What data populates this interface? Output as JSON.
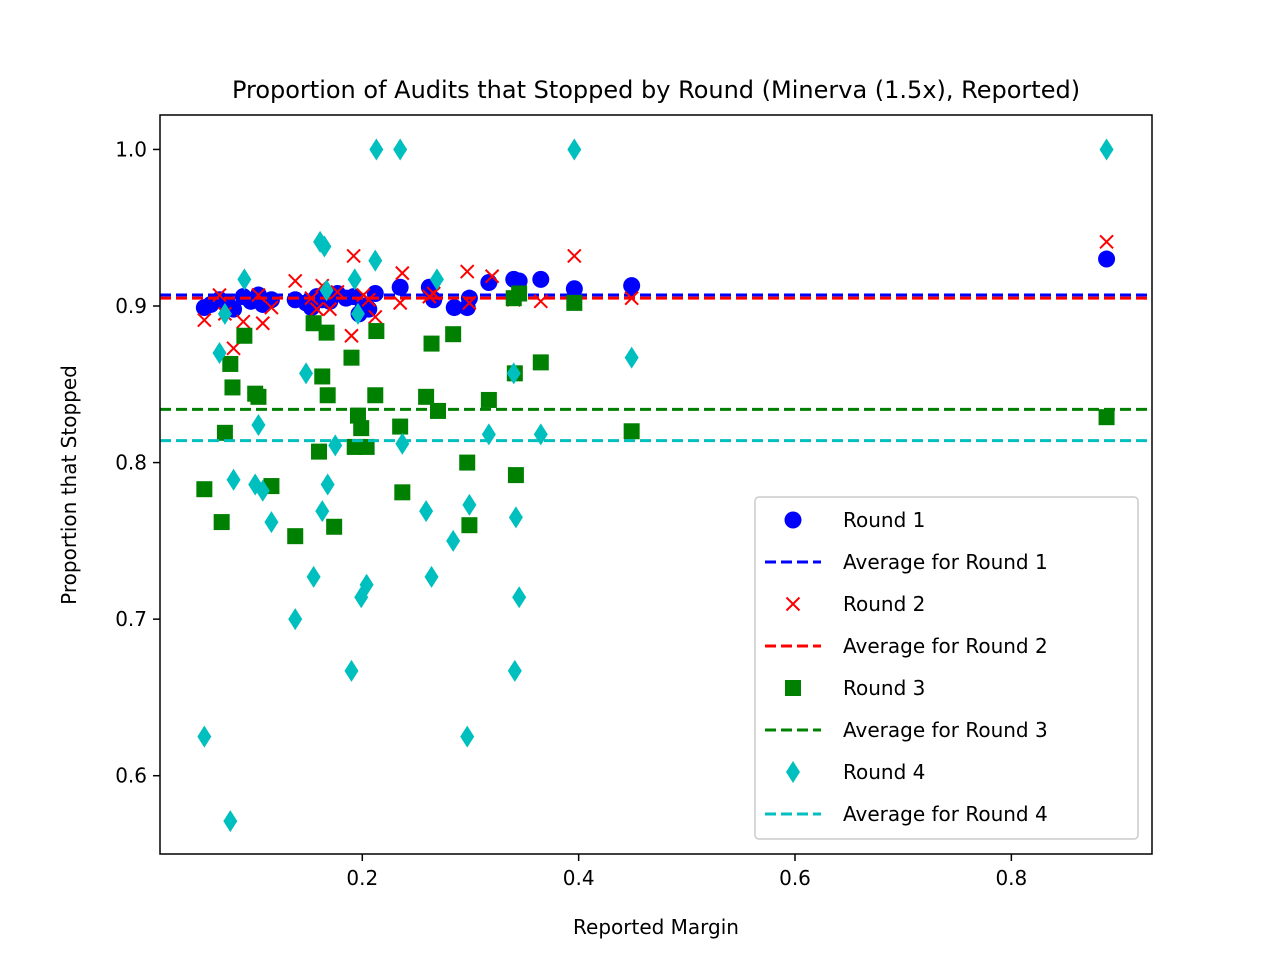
{
  "chart_data": {
    "type": "scatter",
    "title": "Proportion of Audits that Stopped by Round (Minerva (1.5x), Reported)",
    "xlabel": "Reported Margin",
    "ylabel": "Proportion that Stopped",
    "xlim": [
      0.013,
      0.93
    ],
    "ylim": [
      0.55,
      1.022
    ],
    "xticks": [
      0.2,
      0.4,
      0.6,
      0.8
    ],
    "xtick_labels": [
      "0.2",
      "0.4",
      "0.6",
      "0.8"
    ],
    "yticks": [
      0.6,
      0.7,
      0.8,
      0.9,
      1.0
    ],
    "ytick_labels": [
      "0.6",
      "0.7",
      "0.8",
      "0.9",
      "1.0"
    ],
    "grid": false,
    "legend_position": "lower-right",
    "series": [
      {
        "name": "Round 1",
        "marker": "circle",
        "color": "#0000ff",
        "points": [
          [
            0.054,
            0.899
          ],
          [
            0.06,
            0.901
          ],
          [
            0.068,
            0.904
          ],
          [
            0.075,
            0.902
          ],
          [
            0.081,
            0.898
          ],
          [
            0.09,
            0.906
          ],
          [
            0.097,
            0.903
          ],
          [
            0.104,
            0.907
          ],
          [
            0.108,
            0.901
          ],
          [
            0.116,
            0.904
          ],
          [
            0.138,
            0.904
          ],
          [
            0.148,
            0.902
          ],
          [
            0.153,
            0.899
          ],
          [
            0.158,
            0.906
          ],
          [
            0.163,
            0.904
          ],
          [
            0.17,
            0.903
          ],
          [
            0.177,
            0.908
          ],
          [
            0.185,
            0.905
          ],
          [
            0.192,
            0.906
          ],
          [
            0.197,
            0.895
          ],
          [
            0.201,
            0.9
          ],
          [
            0.206,
            0.898
          ],
          [
            0.212,
            0.908
          ],
          [
            0.235,
            0.912
          ],
          [
            0.262,
            0.912
          ],
          [
            0.266,
            0.904
          ],
          [
            0.285,
            0.899
          ],
          [
            0.297,
            0.899
          ],
          [
            0.299,
            0.905
          ],
          [
            0.317,
            0.915
          ],
          [
            0.34,
            0.917
          ],
          [
            0.345,
            0.916
          ],
          [
            0.365,
            0.917
          ],
          [
            0.396,
            0.911
          ],
          [
            0.449,
            0.913
          ],
          [
            0.888,
            0.93
          ]
        ]
      },
      {
        "name": "Average for Round 1",
        "line": "dashed",
        "color": "#0000ff",
        "y": 0.907
      },
      {
        "name": "Round 2",
        "marker": "x",
        "color": "#ff0000",
        "points": [
          [
            0.054,
            0.891
          ],
          [
            0.068,
            0.907
          ],
          [
            0.073,
            0.895
          ],
          [
            0.081,
            0.873
          ],
          [
            0.09,
            0.89
          ],
          [
            0.104,
            0.907
          ],
          [
            0.108,
            0.889
          ],
          [
            0.116,
            0.899
          ],
          [
            0.138,
            0.916
          ],
          [
            0.153,
            0.905
          ],
          [
            0.158,
            0.898
          ],
          [
            0.163,
            0.913
          ],
          [
            0.17,
            0.898
          ],
          [
            0.177,
            0.909
          ],
          [
            0.19,
            0.881
          ],
          [
            0.192,
            0.932
          ],
          [
            0.201,
            0.907
          ],
          [
            0.206,
            0.904
          ],
          [
            0.212,
            0.893
          ],
          [
            0.235,
            0.902
          ],
          [
            0.237,
            0.921
          ],
          [
            0.262,
            0.906
          ],
          [
            0.266,
            0.908
          ],
          [
            0.297,
            0.922
          ],
          [
            0.299,
            0.902
          ],
          [
            0.32,
            0.919
          ],
          [
            0.34,
            0.904
          ],
          [
            0.365,
            0.903
          ],
          [
            0.396,
            0.932
          ],
          [
            0.449,
            0.905
          ],
          [
            0.888,
            0.941
          ]
        ]
      },
      {
        "name": "Average for Round 2",
        "line": "dashed",
        "color": "#ff0000",
        "y": 0.905
      },
      {
        "name": "Round 3",
        "marker": "square",
        "color": "#008000",
        "points": [
          [
            0.054,
            0.783
          ],
          [
            0.07,
            0.762
          ],
          [
            0.073,
            0.819
          ],
          [
            0.078,
            0.863
          ],
          [
            0.08,
            0.848
          ],
          [
            0.091,
            0.881
          ],
          [
            0.101,
            0.844
          ],
          [
            0.104,
            0.842
          ],
          [
            0.116,
            0.785
          ],
          [
            0.138,
            0.753
          ],
          [
            0.155,
            0.889
          ],
          [
            0.16,
            0.807
          ],
          [
            0.163,
            0.855
          ],
          [
            0.167,
            0.883
          ],
          [
            0.168,
            0.843
          ],
          [
            0.174,
            0.759
          ],
          [
            0.19,
            0.867
          ],
          [
            0.193,
            0.81
          ],
          [
            0.196,
            0.83
          ],
          [
            0.199,
            0.822
          ],
          [
            0.204,
            0.81
          ],
          [
            0.212,
            0.843
          ],
          [
            0.213,
            0.884
          ],
          [
            0.235,
            0.823
          ],
          [
            0.237,
            0.781
          ],
          [
            0.259,
            0.842
          ],
          [
            0.264,
            0.876
          ],
          [
            0.27,
            0.833
          ],
          [
            0.284,
            0.882
          ],
          [
            0.297,
            0.8
          ],
          [
            0.299,
            0.76
          ],
          [
            0.317,
            0.84
          ],
          [
            0.34,
            0.905
          ],
          [
            0.341,
            0.857
          ],
          [
            0.342,
            0.792
          ],
          [
            0.345,
            0.908
          ],
          [
            0.365,
            0.864
          ],
          [
            0.396,
            0.902
          ],
          [
            0.449,
            0.82
          ],
          [
            0.888,
            0.829
          ]
        ]
      },
      {
        "name": "Average for Round 3",
        "line": "dashed",
        "color": "#008000",
        "y": 0.834
      },
      {
        "name": "Round 4",
        "marker": "thin-diamond",
        "color": "#00bfbf",
        "points": [
          [
            0.054,
            0.625
          ],
          [
            0.068,
            0.87
          ],
          [
            0.073,
            0.895
          ],
          [
            0.078,
            0.571
          ],
          [
            0.081,
            0.789
          ],
          [
            0.091,
            0.917
          ],
          [
            0.101,
            0.786
          ],
          [
            0.104,
            0.824
          ],
          [
            0.108,
            0.782
          ],
          [
            0.116,
            0.762
          ],
          [
            0.138,
            0.7
          ],
          [
            0.148,
            0.857
          ],
          [
            0.155,
            0.727
          ],
          [
            0.161,
            0.941
          ],
          [
            0.163,
            0.769
          ],
          [
            0.165,
            0.938
          ],
          [
            0.167,
            0.91
          ],
          [
            0.168,
            0.786
          ],
          [
            0.175,
            0.811
          ],
          [
            0.19,
            0.667
          ],
          [
            0.193,
            0.917
          ],
          [
            0.196,
            0.895
          ],
          [
            0.199,
            0.714
          ],
          [
            0.204,
            0.722
          ],
          [
            0.212,
            0.929
          ],
          [
            0.213,
            1.0
          ],
          [
            0.235,
            1.0
          ],
          [
            0.237,
            0.812
          ],
          [
            0.259,
            0.769
          ],
          [
            0.264,
            0.727
          ],
          [
            0.269,
            0.917
          ],
          [
            0.284,
            0.75
          ],
          [
            0.297,
            0.625
          ],
          [
            0.299,
            0.773
          ],
          [
            0.317,
            0.818
          ],
          [
            0.34,
            0.857
          ],
          [
            0.341,
            0.667
          ],
          [
            0.342,
            0.765
          ],
          [
            0.345,
            0.714
          ],
          [
            0.365,
            0.818
          ],
          [
            0.396,
            1.0
          ],
          [
            0.449,
            0.867
          ],
          [
            0.888,
            1.0
          ]
        ]
      },
      {
        "name": "Average for Round 4",
        "line": "dashed",
        "color": "#00bfbf",
        "y": 0.814
      }
    ]
  }
}
